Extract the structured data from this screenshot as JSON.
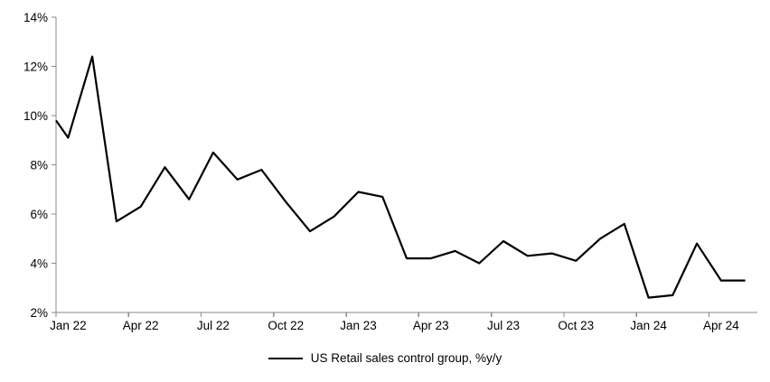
{
  "chart_data": {
    "type": "line",
    "title": "",
    "legend": {
      "label": "US Retail sales control group, %y/y",
      "position": "bottom-center"
    },
    "grid": false,
    "ylim": [
      2,
      14
    ],
    "y_ticks": [
      2,
      4,
      6,
      8,
      10,
      12,
      14
    ],
    "y_tick_labels": [
      "2%",
      "4%",
      "6%",
      "8%",
      "10%",
      "12%",
      "14%"
    ],
    "x_categories": [
      "Jan 22",
      "Feb 22",
      "Mar 22",
      "Apr 22",
      "May 22",
      "Jun 22",
      "Jul 22",
      "Aug 22",
      "Sep 22",
      "Oct 22",
      "Nov 22",
      "Dec 22",
      "Jan 23",
      "Feb 23",
      "Mar 23",
      "Apr 23",
      "May 23",
      "Jun 23",
      "Jul 23",
      "Aug 23",
      "Sep 23",
      "Oct 23",
      "Nov 23",
      "Dec 23",
      "Jan 24",
      "Feb 24",
      "Mar 24",
      "Apr 24",
      "May 24"
    ],
    "x_tick_labels": [
      "Jan 22",
      "Apr 22",
      "Jul 22",
      "Oct 22",
      "Jan 23",
      "Apr 23",
      "Jul 23",
      "Oct 23",
      "Jan 24",
      "Apr 24"
    ],
    "x_tick_label_every": 3,
    "series": [
      {
        "name": "US Retail sales control group, %y/y",
        "color": "#000000",
        "values": [
          9.1,
          12.4,
          5.7,
          6.3,
          7.9,
          6.6,
          8.5,
          7.4,
          7.8,
          6.5,
          5.3,
          5.9,
          6.9,
          6.7,
          4.2,
          4.2,
          4.5,
          4.0,
          4.9,
          4.3,
          4.4,
          4.1,
          5.0,
          5.6,
          2.6,
          2.7,
          4.8,
          3.3,
          3.3
        ]
      }
    ],
    "leading_edge_value": 9.8
  },
  "colors": {
    "axis": "#8a8a8a",
    "text": "#000000",
    "line": "#000000",
    "background": "#ffffff"
  }
}
